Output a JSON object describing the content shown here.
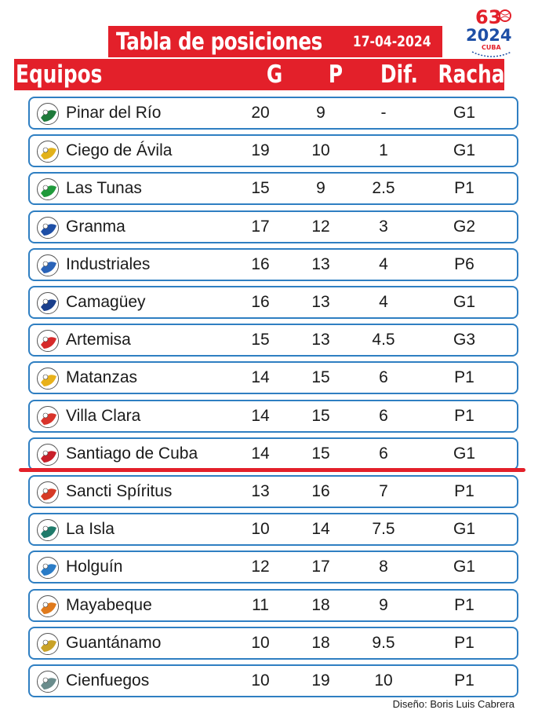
{
  "title": "Tabla de posiciones",
  "date": "17-04-2024",
  "logo": {
    "number": "63",
    "year": "2024",
    "word": "CUBA"
  },
  "columns": {
    "team": "Equipos",
    "g": "G",
    "p": "P",
    "dif": "Dif.",
    "racha": "Racha"
  },
  "teams": [
    {
      "name": "Pinar del Río",
      "g": "20",
      "p": "9",
      "dif": "-",
      "racha": "G1",
      "icon": "pinar-del-rio-logo-icon",
      "color": "#1e7a3a"
    },
    {
      "name": "Ciego de Ávila",
      "g": "19",
      "p": "10",
      "dif": "1",
      "racha": "G1",
      "icon": "ciego-de-avila-logo-icon",
      "color": "#e2b21c"
    },
    {
      "name": "Las Tunas",
      "g": "15",
      "p": "9",
      "dif": "2.5",
      "racha": "P1",
      "icon": "las-tunas-logo-icon",
      "color": "#1f9a3b"
    },
    {
      "name": "Granma",
      "g": "17",
      "p": "12",
      "dif": "3",
      "racha": "G2",
      "icon": "granma-logo-icon",
      "color": "#1e4fa6"
    },
    {
      "name": "Industriales",
      "g": "16",
      "p": "13",
      "dif": "4",
      "racha": "P6",
      "icon": "industriales-logo-icon",
      "color": "#2a63b8"
    },
    {
      "name": "Camagüey",
      "g": "16",
      "p": "13",
      "dif": "4",
      "racha": "G1",
      "icon": "camaguey-logo-icon",
      "color": "#1a3f8c"
    },
    {
      "name": "Artemisa",
      "g": "15",
      "p": "13",
      "dif": "4.5",
      "racha": "G3",
      "icon": "artemisa-logo-icon",
      "color": "#d62a2a"
    },
    {
      "name": "Matanzas",
      "g": "14",
      "p": "15",
      "dif": "6",
      "racha": "P1",
      "icon": "matanzas-logo-icon",
      "color": "#e8b11a"
    },
    {
      "name": "Villa Clara",
      "g": "14",
      "p": "15",
      "dif": "6",
      "racha": "P1",
      "icon": "villa-clara-logo-icon",
      "color": "#d9342b"
    },
    {
      "name": "Santiago de Cuba",
      "g": "14",
      "p": "15",
      "dif": "6",
      "racha": "G1",
      "icon": "santiago-de-cuba-logo-icon",
      "color": "#c8202a"
    },
    {
      "name": "Sancti Spíritus",
      "g": "13",
      "p": "16",
      "dif": "7",
      "racha": "P1",
      "icon": "sancti-spiritus-logo-icon",
      "color": "#d63a26"
    },
    {
      "name": "La Isla",
      "g": "10",
      "p": "14",
      "dif": "7.5",
      "racha": "G1",
      "icon": "la-isla-logo-icon",
      "color": "#1f7a6a"
    },
    {
      "name": "Holguín",
      "g": "12",
      "p": "17",
      "dif": "8",
      "racha": "G1",
      "icon": "holguin-logo-icon",
      "color": "#2a7cc7"
    },
    {
      "name": "Mayabeque",
      "g": "11",
      "p": "18",
      "dif": "9",
      "racha": "P1",
      "icon": "mayabeque-logo-icon",
      "color": "#e07a1c"
    },
    {
      "name": "Guantánamo",
      "g": "10",
      "p": "18",
      "dif": "9.5",
      "racha": "P1",
      "icon": "guantanamo-logo-icon",
      "color": "#c9a227"
    },
    {
      "name": "Cienfuegos",
      "g": "10",
      "p": "19",
      "dif": "10",
      "racha": "P1",
      "icon": "cienfuegos-logo-icon",
      "color": "#6a8c8c"
    }
  ],
  "credit": "Diseño: Boris Luis Cabrera"
}
